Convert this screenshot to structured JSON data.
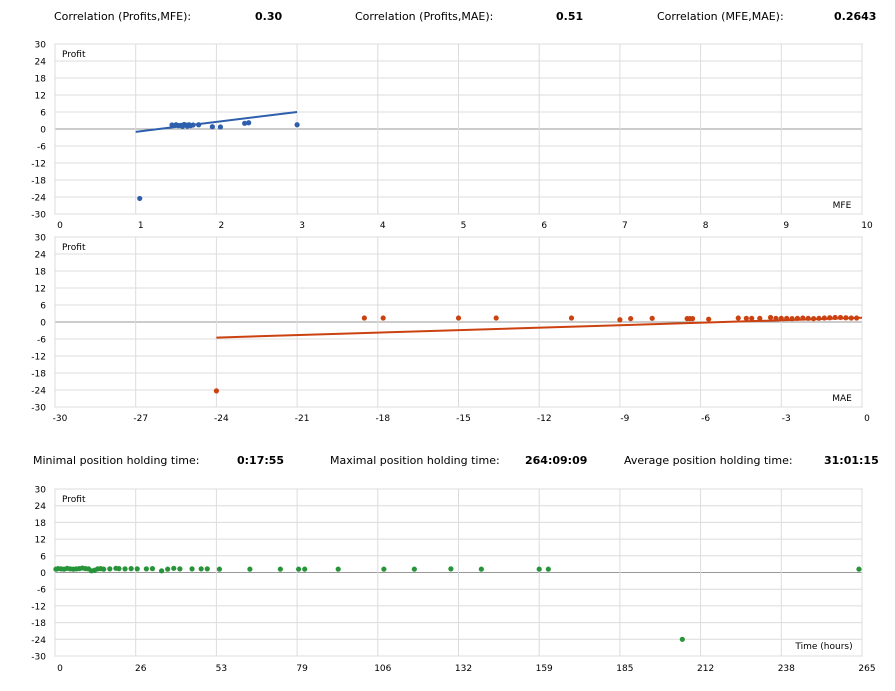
{
  "correlations": {
    "profits_mfe_label": "Correlation (Profits,MFE):",
    "profits_mfe_value": "0.30",
    "profits_mae_label": "Correlation (Profits,MAE):",
    "profits_mae_value": "0.51",
    "mfe_mae_label": "Correlation (MFE,MAE):",
    "mfe_mae_value": "0.2643"
  },
  "holding": {
    "min_label": "Minimal position holding time:",
    "min_value": "0:17:55",
    "max_label": "Maximal position holding time:",
    "max_value": "264:09:09",
    "avg_label": "Average position holding time:",
    "avg_value": "31:01:15"
  },
  "colors": {
    "mfe": "#2e5fad",
    "mae": "#cc4110",
    "time": "#27943a",
    "grid": "#dcdcdc"
  },
  "chart_data": [
    {
      "type": "scatter",
      "id": "mfe",
      "ylabel": "Profit",
      "xlabel": "MFE",
      "xlim": [
        0,
        10
      ],
      "ylim": [
        -30,
        30
      ],
      "xticks": [
        "0",
        "1",
        "2",
        "3",
        "4",
        "5",
        "6",
        "7",
        "8",
        "9",
        "10"
      ],
      "yticks": [
        "30",
        "24",
        "18",
        "12",
        "6",
        "0",
        "-6",
        "-12",
        "-18",
        "-24",
        "-30"
      ],
      "grid": true,
      "trend": {
        "x": [
          1.0,
          3.0
        ],
        "y": [
          -1.0,
          6.0
        ]
      },
      "points": [
        [
          1.05,
          -24.5
        ],
        [
          1.45,
          1.4
        ],
        [
          1.5,
          1.5
        ],
        [
          1.53,
          1.2
        ],
        [
          1.56,
          1.3
        ],
        [
          1.58,
          0.9
        ],
        [
          1.6,
          1.6
        ],
        [
          1.62,
          1.4
        ],
        [
          1.64,
          1.0
        ],
        [
          1.66,
          1.5
        ],
        [
          1.68,
          1.2
        ],
        [
          1.71,
          1.4
        ],
        [
          1.78,
          1.5
        ],
        [
          1.95,
          0.8
        ],
        [
          2.05,
          0.7
        ],
        [
          2.35,
          2.0
        ],
        [
          2.4,
          2.2
        ],
        [
          3.0,
          1.5
        ]
      ]
    },
    {
      "type": "scatter",
      "id": "mae",
      "ylabel": "Profit",
      "xlabel": "MAE",
      "xlim": [
        -30,
        0
      ],
      "ylim": [
        -30,
        30
      ],
      "xticks": [
        "-30",
        "-27",
        "-24",
        "-21",
        "-18",
        "-15",
        "-12",
        "-9",
        "-6",
        "-3",
        "0"
      ],
      "yticks": [
        "30",
        "24",
        "18",
        "12",
        "6",
        "0",
        "-6",
        "-12",
        "-18",
        "-24",
        "-30"
      ],
      "grid": true,
      "trend": {
        "x": [
          -24.0,
          0.0
        ],
        "y": [
          -5.5,
          1.5
        ]
      },
      "points": [
        [
          -24.0,
          -24.3
        ],
        [
          -18.5,
          1.4
        ],
        [
          -17.8,
          1.4
        ],
        [
          -15.0,
          1.4
        ],
        [
          -13.6,
          1.4
        ],
        [
          -10.8,
          1.4
        ],
        [
          -9.0,
          0.8
        ],
        [
          -8.6,
          1.2
        ],
        [
          -7.8,
          1.3
        ],
        [
          -6.5,
          1.2
        ],
        [
          -6.4,
          1.2
        ],
        [
          -6.3,
          1.2
        ],
        [
          -5.7,
          1.0
        ],
        [
          -4.6,
          1.4
        ],
        [
          -4.3,
          1.3
        ],
        [
          -4.1,
          1.3
        ],
        [
          -3.8,
          1.3
        ],
        [
          -3.4,
          1.6
        ],
        [
          -3.2,
          1.3
        ],
        [
          -3.0,
          1.3
        ],
        [
          -2.8,
          1.3
        ],
        [
          -2.6,
          1.2
        ],
        [
          -2.4,
          1.3
        ],
        [
          -2.2,
          1.4
        ],
        [
          -2.0,
          1.3
        ],
        [
          -1.8,
          1.2
        ],
        [
          -1.6,
          1.3
        ],
        [
          -1.4,
          1.4
        ],
        [
          -1.2,
          1.5
        ],
        [
          -1.0,
          1.6
        ],
        [
          -0.8,
          1.6
        ],
        [
          -0.6,
          1.5
        ],
        [
          -0.4,
          1.4
        ],
        [
          -0.2,
          1.4
        ]
      ]
    },
    {
      "type": "scatter",
      "id": "time",
      "ylabel": "Profit",
      "xlabel": "Time (hours)",
      "xlim": [
        0,
        265
      ],
      "ylim": [
        -30,
        30
      ],
      "xticks": [
        "0",
        "26",
        "53",
        "79",
        "106",
        "132",
        "159",
        "185",
        "212",
        "238",
        "265"
      ],
      "yticks": [
        "30",
        "24",
        "18",
        "12",
        "6",
        "0",
        "-6",
        "-12",
        "-18",
        "-24",
        "-30"
      ],
      "grid": true,
      "points": [
        [
          0.3,
          1.2
        ],
        [
          1,
          1.4
        ],
        [
          2,
          1.3
        ],
        [
          3,
          1.2
        ],
        [
          4,
          1.5
        ],
        [
          5,
          1.3
        ],
        [
          6,
          1.2
        ],
        [
          7,
          1.3
        ],
        [
          8,
          1.4
        ],
        [
          9,
          1.6
        ],
        [
          10,
          1.4
        ],
        [
          11,
          1.3
        ],
        [
          12,
          0.6
        ],
        [
          13,
          0.8
        ],
        [
          14,
          1.3
        ],
        [
          15,
          1.4
        ],
        [
          16,
          1.2
        ],
        [
          18,
          1.3
        ],
        [
          20,
          1.5
        ],
        [
          21,
          1.4
        ],
        [
          23,
          1.3
        ],
        [
          25,
          1.4
        ],
        [
          27,
          1.3
        ],
        [
          30,
          1.3
        ],
        [
          32,
          1.4
        ],
        [
          35,
          0.6
        ],
        [
          37,
          1.2
        ],
        [
          39,
          1.5
        ],
        [
          41,
          1.3
        ],
        [
          45,
          1.3
        ],
        [
          48,
          1.3
        ],
        [
          50,
          1.3
        ],
        [
          54,
          1.2
        ],
        [
          64,
          1.2
        ],
        [
          74,
          1.2
        ],
        [
          80,
          1.2
        ],
        [
          82,
          1.2
        ],
        [
          93,
          1.2
        ],
        [
          108,
          1.2
        ],
        [
          118,
          1.2
        ],
        [
          130,
          1.3
        ],
        [
          140,
          1.2
        ],
        [
          159,
          1.2
        ],
        [
          162,
          1.2
        ],
        [
          206,
          -24.0
        ],
        [
          264,
          1.2
        ]
      ]
    }
  ]
}
